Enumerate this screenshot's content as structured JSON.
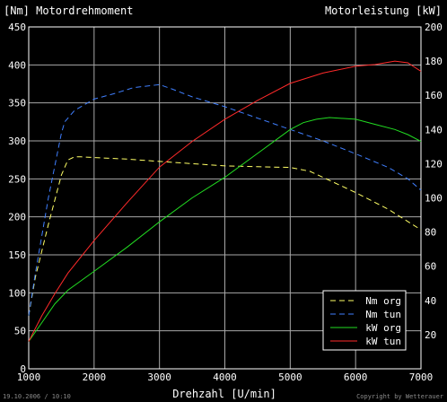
{
  "colors": {
    "background": "#000000",
    "frame": "#ffffff",
    "grid": "#a8a8a8",
    "text": "#ffffff",
    "footer_text": "#8a8a8a",
    "legend_bg": "#000000",
    "nm_org": "#ffff66",
    "nm_tun": "#3f7fff",
    "kw_org": "#22dd22",
    "kw_tun": "#ff2a2a"
  },
  "footer": {
    "date": "19.10.2006 / 10:10",
    "copyright": "Copyright by Wetterauer"
  },
  "chart_data": {
    "type": "line",
    "title_left": "[Nm] Motordrehmoment",
    "title_right": "Motorleistung [kW]",
    "xlabel": "Drehzahl [U/min]",
    "xlim": [
      1000,
      7000
    ],
    "x_ticks": [
      1000,
      2000,
      3000,
      4000,
      5000,
      6000,
      7000
    ],
    "x_tick_labels": [
      "1000",
      "2000",
      "3000",
      "4000",
      "5000",
      "6000",
      "7000"
    ],
    "y_left": {
      "lim": [
        0,
        450
      ],
      "ticks": [
        0,
        50,
        100,
        150,
        200,
        250,
        300,
        350,
        400,
        450
      ],
      "tick_labels": [
        "0",
        "50",
        "100",
        "150",
        "200",
        "250",
        "300",
        "350",
        "400",
        "450"
      ]
    },
    "y_right": {
      "lim": [
        0,
        200
      ],
      "ticks": [
        20,
        40,
        60,
        80,
        100,
        120,
        140,
        160,
        180,
        200
      ],
      "tick_labels": [
        "20",
        "40",
        "60",
        "80",
        "100",
        "120",
        "140",
        "160",
        "180",
        "200"
      ]
    },
    "grid": true,
    "legend_position": "bottom-right",
    "series": [
      {
        "name": "Nm org",
        "axis": "left",
        "style": "dashed",
        "color_key": "nm_org",
        "x": [
          1000,
          1100,
          1300,
          1500,
          1600,
          1700,
          1800,
          2000,
          2500,
          3000,
          3500,
          4000,
          4500,
          5000,
          5300,
          5500,
          6000,
          6500,
          7000
        ],
        "y": [
          70,
          120,
          190,
          255,
          275,
          279,
          279,
          278,
          276,
          273,
          270,
          267,
          266,
          265,
          260,
          252,
          232,
          210,
          183
        ]
      },
      {
        "name": "Nm tun",
        "axis": "left",
        "style": "dashed",
        "color_key": "nm_tun",
        "x": [
          1000,
          1100,
          1300,
          1500,
          1550,
          1700,
          2000,
          2300,
          2600,
          3000,
          3200,
          3500,
          4000,
          4500,
          5000,
          5500,
          6000,
          6500,
          6800,
          7000
        ],
        "y": [
          70,
          125,
          225,
          310,
          325,
          340,
          355,
          362,
          370,
          374,
          368,
          358,
          345,
          330,
          315,
          300,
          283,
          265,
          250,
          235
        ]
      },
      {
        "name": "kW org",
        "axis": "right",
        "style": "solid",
        "color_key": "kw_org",
        "x": [
          1000,
          1200,
          1400,
          1600,
          2000,
          2500,
          3000,
          3500,
          4000,
          4500,
          5000,
          5200,
          5400,
          5600,
          6000,
          6300,
          6600,
          6800,
          7000
        ],
        "y": [
          16,
          27,
          38,
          46,
          57,
          71,
          86,
          100,
          112,
          126,
          140,
          144,
          146,
          147,
          146,
          143,
          140,
          137,
          133
        ]
      },
      {
        "name": "kW tun",
        "axis": "right",
        "style": "solid",
        "color_key": "kw_tun",
        "x": [
          1000,
          1200,
          1400,
          1600,
          2000,
          2500,
          3000,
          3500,
          4000,
          4500,
          5000,
          5500,
          6000,
          6300,
          6600,
          6800,
          7000
        ],
        "y": [
          16,
          31,
          44,
          56,
          75,
          97,
          118,
          133,
          146,
          157,
          167,
          173,
          177,
          178,
          180,
          179,
          174
        ]
      }
    ]
  }
}
